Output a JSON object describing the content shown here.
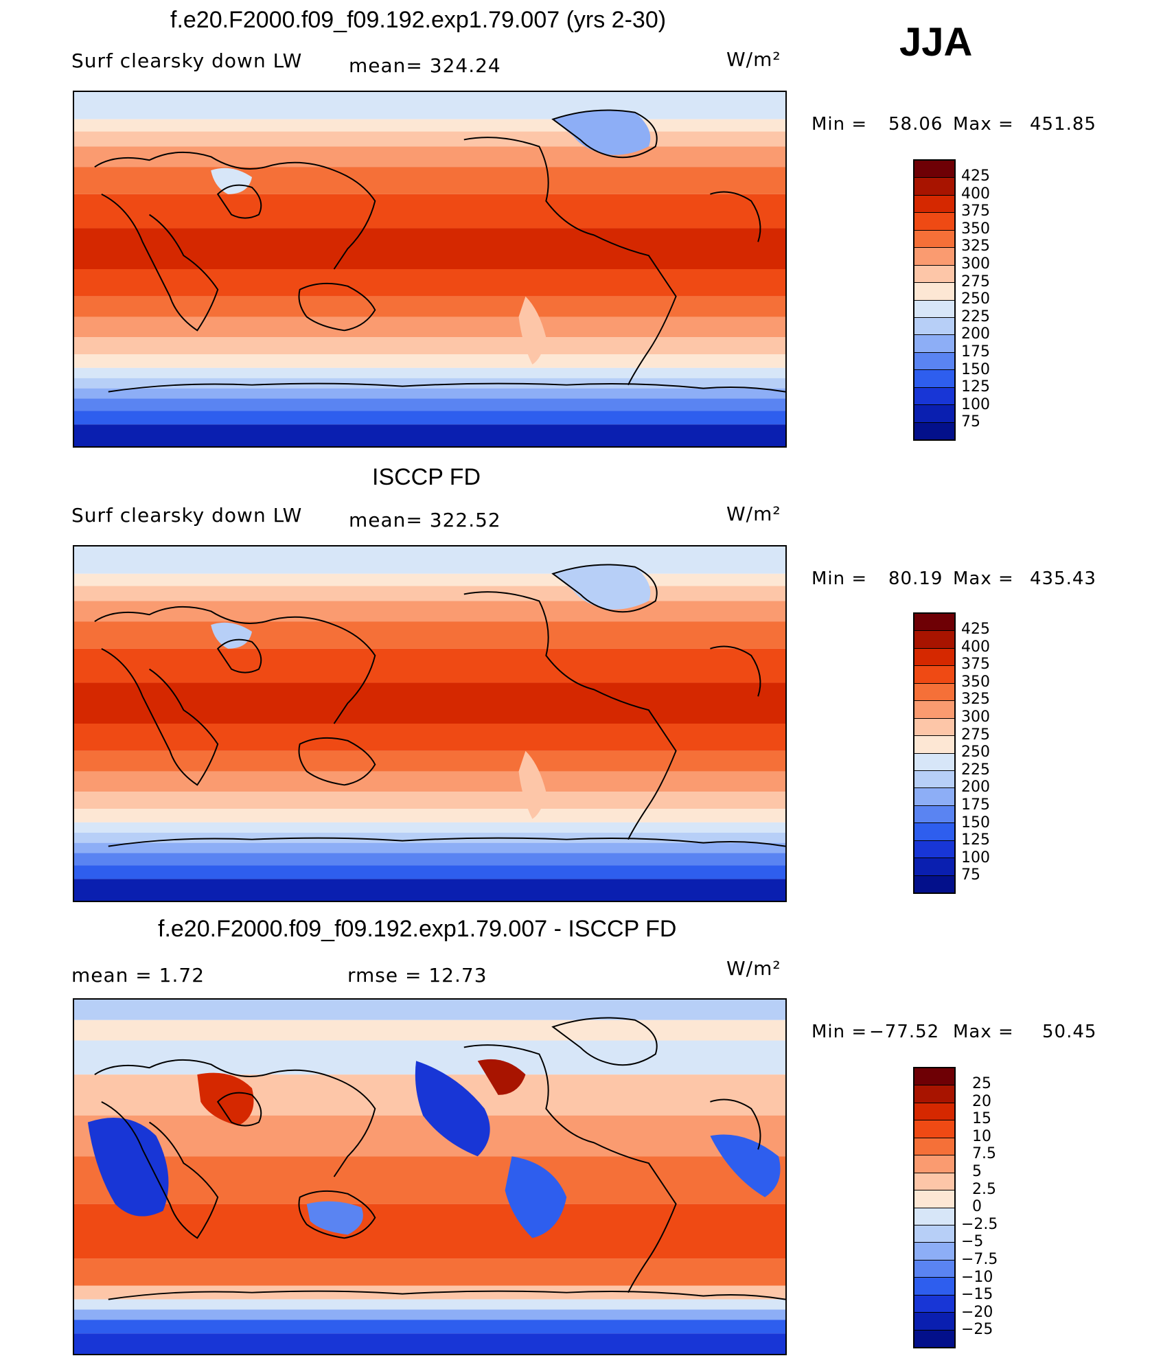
{
  "season": "JJA",
  "colors": {
    "abs_palette": [
      "#6e0005",
      "#a81400",
      "#d52800",
      "#ef4a14",
      "#f57038",
      "#fa9b70",
      "#fdc6a8",
      "#fde7d4",
      "#d7e6f8",
      "#b7cff7",
      "#8daef6",
      "#5a84f2",
      "#2e5eee",
      "#1836d6",
      "#0a1fb0",
      "#03108b"
    ],
    "diff_palette": [
      "#6e0005",
      "#a81400",
      "#d52800",
      "#ef4a14",
      "#f57038",
      "#fa9b70",
      "#fdc6a8",
      "#fde7d4",
      "#d7e6f8",
      "#b7cff7",
      "#8daef6",
      "#5a84f2",
      "#2e5eee",
      "#1836d6",
      "#0a1fb0",
      "#03108b"
    ]
  },
  "panels": [
    {
      "title": "f.e20.F2000.f09_f09.192.exp1.79.007 (yrs 2-30)",
      "left_label": "Surf  clearsky  down  LW",
      "stat": "mean=  324.24",
      "units": "W/m²",
      "min_label": "Min  =",
      "min_value": "58.06",
      "max_label": "Max  =",
      "max_value": "451.85",
      "levels": [
        "425",
        "400",
        "375",
        "350",
        "325",
        "300",
        "275",
        "250",
        "225",
        "200",
        "175",
        "150",
        "125",
        "100",
        "75"
      ],
      "pattern": "model"
    },
    {
      "title": "ISCCP FD",
      "left_label": "Surf  clearsky  down  LW",
      "stat": "mean=  322.52",
      "units": "W/m²",
      "min_label": "Min  =",
      "min_value": "80.19",
      "max_label": "Max  =",
      "max_value": "435.43",
      "levels": [
        "425",
        "400",
        "375",
        "350",
        "325",
        "300",
        "275",
        "250",
        "225",
        "200",
        "175",
        "150",
        "125",
        "100",
        "75"
      ],
      "pattern": "obs"
    },
    {
      "title": "f.e20.F2000.f09_f09.192.exp1.79.007 - ISCCP FD",
      "left_label": "mean  =      1.72",
      "stat": "rmse  =     12.73",
      "units": "W/m²",
      "min_label": "Min  =",
      "min_value": "−77.52",
      "max_label": "Max  =",
      "max_value": "50.45",
      "levels": [
        "25",
        "20",
        "15",
        "10",
        "7.5",
        "5",
        "2.5",
        "0",
        "−2.5",
        "−5",
        "−7.5",
        "−10",
        "−15",
        "−20",
        "−25"
      ],
      "pattern": "diff"
    }
  ]
}
